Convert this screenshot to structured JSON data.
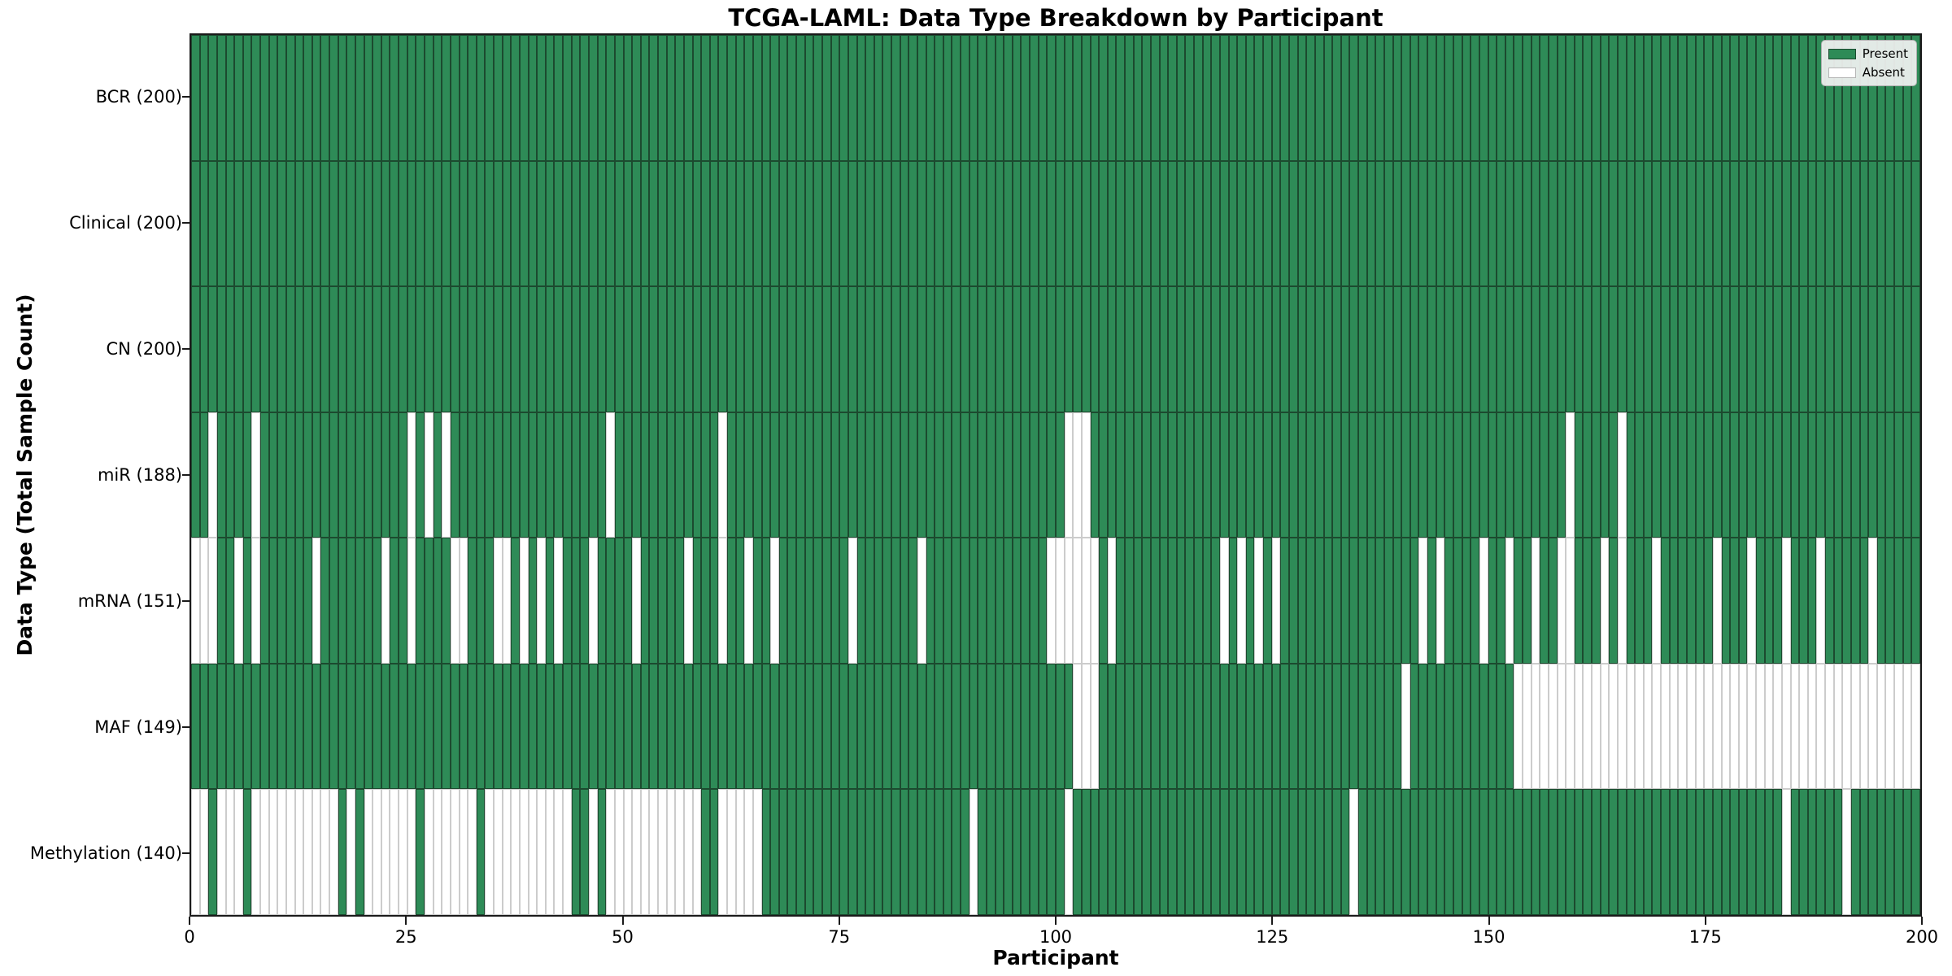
{
  "chart_data": {
    "type": "heatmap",
    "title": "TCGA-LAML: Data Type Breakdown by Participant",
    "x_axis": {
      "label": "Participant",
      "range": [
        0,
        200
      ],
      "ticks": [
        "0",
        "25",
        "50",
        "75",
        "100",
        "125",
        "150",
        "175",
        "200"
      ],
      "tick_values": [
        0,
        25,
        50,
        75,
        100,
        125,
        150,
        175,
        200
      ]
    },
    "y_axis": {
      "label": "Data Type (Total Sample Count)"
    },
    "n_participants": 200,
    "grid": false,
    "legend_position": "upper right",
    "colors": {
      "present": "#2E8B57",
      "absent": "#FFFFFF",
      "present_border": "#1c4a2f",
      "absent_border": "#cccccc"
    },
    "legend": {
      "items": [
        {
          "label": "Present",
          "color": "#2E8B57"
        },
        {
          "label": "Absent",
          "color": "#FFFFFF"
        }
      ]
    },
    "rows": [
      {
        "label": "BCR (200)",
        "data_type": "BCR",
        "present_count": 200,
        "absent_participants": []
      },
      {
        "label": "Clinical (200)",
        "data_type": "Clinical",
        "present_count": 200,
        "absent_participants": []
      },
      {
        "label": "CN (200)",
        "data_type": "CN",
        "present_count": 200,
        "absent_participants": []
      },
      {
        "label": "miR (188)",
        "data_type": "miR",
        "present_count": 188,
        "absent_participants": [
          2,
          7,
          25,
          27,
          29,
          48,
          61,
          101,
          102,
          103,
          159,
          165
        ]
      },
      {
        "label": "mRNA (151)",
        "data_type": "mRNA",
        "present_count": 151,
        "absent_participants": [
          0,
          1,
          2,
          5,
          7,
          14,
          22,
          25,
          30,
          31,
          35,
          36,
          38,
          40,
          42,
          46,
          51,
          57,
          61,
          64,
          67,
          76,
          84,
          99,
          100,
          101,
          102,
          103,
          104,
          106,
          119,
          121,
          123,
          125,
          142,
          144,
          149,
          152,
          155,
          158,
          159,
          163,
          165,
          169,
          176,
          180,
          184,
          188,
          194
        ]
      },
      {
        "label": "MAF (149)",
        "data_type": "MAF",
        "present_count": 149,
        "absent_participants": [
          102,
          103,
          104,
          140,
          153,
          154,
          155,
          156,
          157,
          158,
          159,
          160,
          161,
          162,
          163,
          164,
          165,
          166,
          167,
          168,
          169,
          170,
          171,
          172,
          173,
          174,
          175,
          176,
          177,
          178,
          179,
          180,
          181,
          182,
          183,
          184,
          185,
          186,
          187,
          188,
          189,
          190,
          191,
          192,
          193,
          194,
          195,
          196,
          197,
          198,
          199
        ]
      },
      {
        "label": "Methylation (140)",
        "data_type": "Methylation",
        "present_count": 140,
        "absent_participants": [
          0,
          1,
          3,
          4,
          5,
          7,
          8,
          9,
          10,
          11,
          12,
          13,
          14,
          15,
          16,
          18,
          20,
          21,
          22,
          23,
          24,
          25,
          27,
          28,
          29,
          30,
          31,
          32,
          34,
          35,
          36,
          37,
          38,
          39,
          40,
          41,
          42,
          43,
          46,
          48,
          49,
          50,
          51,
          52,
          53,
          54,
          55,
          56,
          57,
          58,
          61,
          62,
          63,
          64,
          65,
          90,
          101,
          134,
          184,
          191
        ]
      }
    ]
  }
}
